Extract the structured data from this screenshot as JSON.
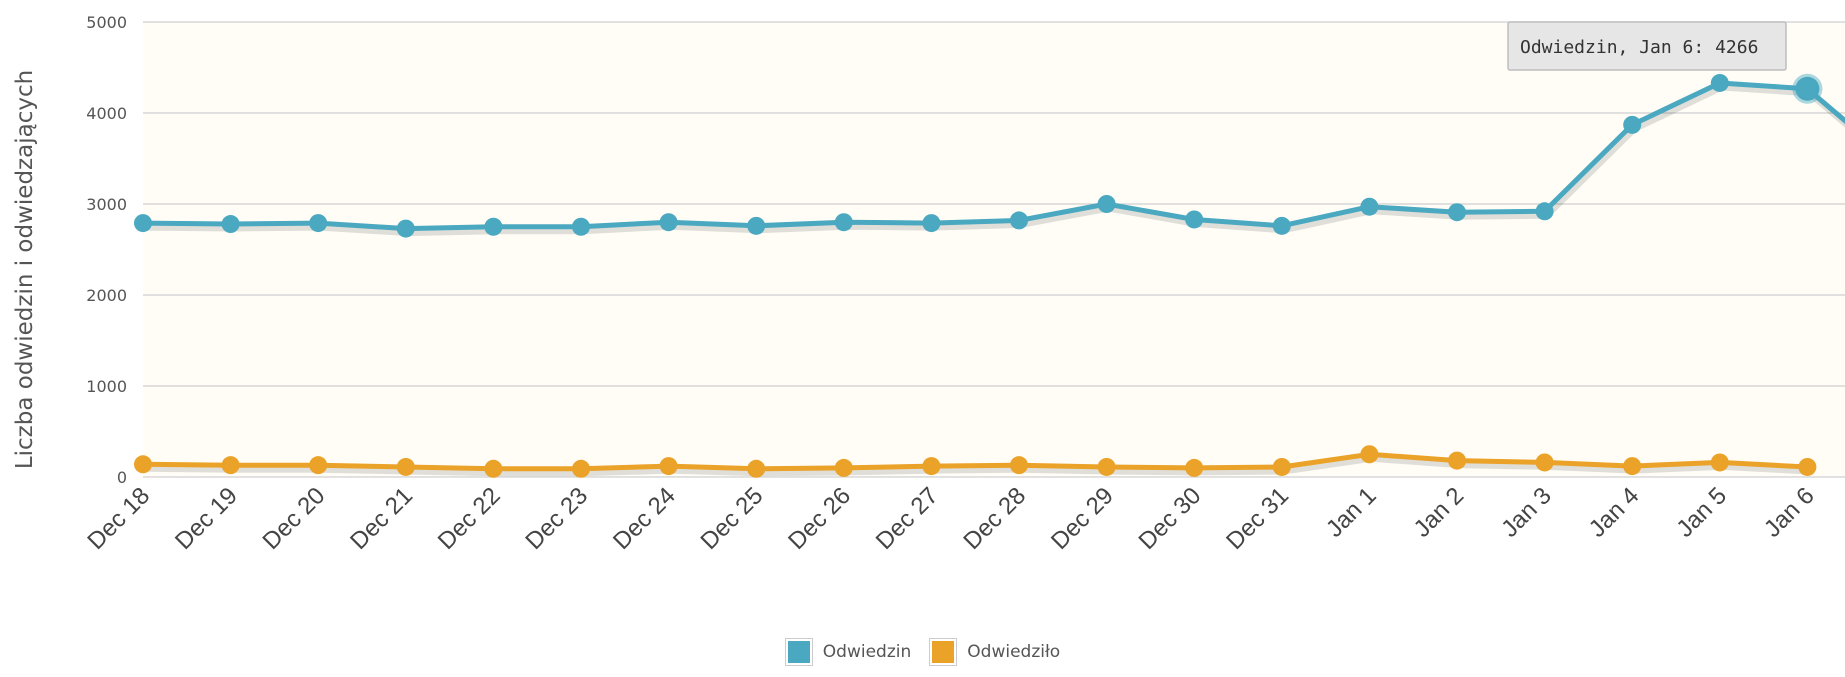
{
  "chart_data": {
    "type": "line",
    "title": "",
    "xlabel": "",
    "ylabel": "Liczba odwiedzin i odwiedzających",
    "ylim": [
      0,
      5000
    ],
    "yticks": [
      0,
      1000,
      2000,
      3000,
      4000,
      5000
    ],
    "categories": [
      "Dec 18",
      "Dec 19",
      "Dec 20",
      "Dec 21",
      "Dec 22",
      "Dec 23",
      "Dec 24",
      "Dec 25",
      "Dec 26",
      "Dec 27",
      "Dec 28",
      "Dec 29",
      "Dec 30",
      "Dec 31",
      "Jan 1",
      "Jan 2",
      "Jan 3",
      "Jan 4",
      "Jan 5",
      "Jan 6"
    ],
    "series": [
      {
        "name": "Odwiedzin",
        "color": "#4aa8c0",
        "values": [
          2790,
          2780,
          2790,
          2730,
          2750,
          2750,
          2800,
          2760,
          2800,
          2790,
          2820,
          3000,
          2830,
          2760,
          2970,
          2910,
          2920,
          3870,
          4330,
          4266
        ]
      },
      {
        "name": "Odwiedziło",
        "color": "#eaa228",
        "values": [
          140,
          130,
          130,
          110,
          90,
          90,
          120,
          90,
          100,
          120,
          130,
          110,
          100,
          110,
          250,
          180,
          160,
          120,
          160,
          110
        ]
      }
    ],
    "trailing_value_after_last": 3450,
    "grid": true,
    "legend_position": "bottom-center",
    "tooltip": {
      "text": "Odwiedzin, Jan 6: 4266",
      "series": "Odwiedzin",
      "category": "Jan 6"
    },
    "plot_background": "#fffdf6"
  }
}
